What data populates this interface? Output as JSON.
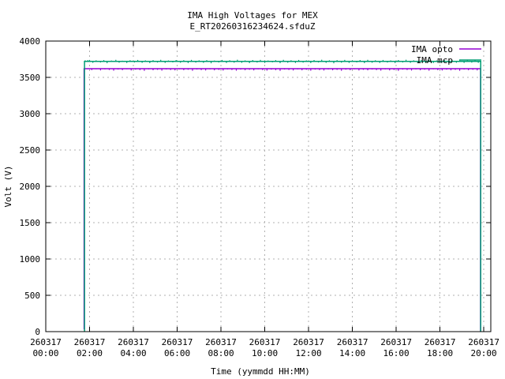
{
  "colors": {
    "opto": "#9400d3",
    "mcp": "#009e73",
    "grid": "#b0b0b0",
    "axis": "#000000",
    "background": "#ffffff"
  },
  "chart_data": {
    "type": "line",
    "title": "IMA High Voltages for MEX",
    "subtitle": "E_RT20260316234624.sfduZ",
    "xlabel": "Time (yymmdd HH:MM)",
    "ylabel": "Volt (V)",
    "ylim": [
      0,
      4000
    ],
    "xlim_hours": [
      0,
      20.32
    ],
    "grid": true,
    "legend_position": "top-right-inside",
    "yticks": [
      0,
      500,
      1000,
      1500,
      2000,
      2500,
      3000,
      3500,
      4000
    ],
    "xticks": [
      {
        "h": 0,
        "date": "260317",
        "time": "00:00"
      },
      {
        "h": 2,
        "date": "260317",
        "time": "02:00"
      },
      {
        "h": 4,
        "date": "260317",
        "time": "04:00"
      },
      {
        "h": 6,
        "date": "260317",
        "time": "06:00"
      },
      {
        "h": 8,
        "date": "260317",
        "time": "08:00"
      },
      {
        "h": 10,
        "date": "260317",
        "time": "10:00"
      },
      {
        "h": 12,
        "date": "260317",
        "time": "12:00"
      },
      {
        "h": 14,
        "date": "260317",
        "time": "14:00"
      },
      {
        "h": 16,
        "date": "260317",
        "time": "16:00"
      },
      {
        "h": 18,
        "date": "260317",
        "time": "18:00"
      },
      {
        "h": 20,
        "date": "260317",
        "time": "20:00"
      }
    ],
    "legend": [
      {
        "name": "IMA opto",
        "color": "#9400d3"
      },
      {
        "name": "IMA mcp",
        "color": "#009e73"
      }
    ],
    "series": [
      {
        "name": "IMA opto",
        "color": "#9400d3",
        "base": 3620,
        "start_h": 1.75,
        "end_h": 19.85,
        "start_value": 30,
        "end_value": 0,
        "blips": [
          [
            2.1,
            3600
          ],
          [
            2.3,
            3612
          ],
          [
            2.5,
            3596
          ],
          [
            2.7,
            3610
          ],
          [
            2.9,
            3602
          ],
          [
            3.1,
            3592
          ],
          [
            3.3,
            3608
          ],
          [
            3.5,
            3599
          ],
          [
            3.7,
            3612
          ],
          [
            3.9,
            3595
          ],
          [
            4.1,
            3606
          ],
          [
            4.3,
            3600
          ],
          [
            4.5,
            3590
          ],
          [
            4.7,
            3610
          ],
          [
            4.9,
            3598
          ],
          [
            5.1,
            3604
          ],
          [
            5.3,
            3593
          ],
          [
            5.5,
            3609
          ],
          [
            5.7,
            3601
          ],
          [
            5.9,
            3596
          ],
          [
            6.1,
            3611
          ],
          [
            6.3,
            3599
          ],
          [
            6.5,
            3605
          ],
          [
            6.7,
            3591
          ],
          [
            6.9,
            3608
          ],
          [
            7.1,
            3600
          ],
          [
            7.3,
            3595
          ],
          [
            7.5,
            3610
          ],
          [
            7.7,
            3597
          ],
          [
            7.9,
            3603
          ],
          [
            8.1,
            3594
          ],
          [
            8.3,
            3609
          ],
          [
            8.5,
            3601
          ],
          [
            8.7,
            3592
          ],
          [
            8.9,
            3607
          ],
          [
            9.1,
            3598
          ],
          [
            9.3,
            3604
          ],
          [
            9.5,
            3596
          ],
          [
            9.7,
            3611
          ],
          [
            9.9,
            3600
          ],
          [
            10.1,
            3593
          ],
          [
            10.3,
            3606
          ],
          [
            10.5,
            3599
          ],
          [
            10.7,
            3590
          ],
          [
            10.9,
            3608
          ],
          [
            11.1,
            3602
          ],
          [
            11.3,
            3595
          ],
          [
            11.5,
            3610
          ],
          [
            11.7,
            3597
          ],
          [
            11.9,
            3605
          ],
          [
            12.1,
            3592
          ],
          [
            12.3,
            3607
          ],
          [
            12.5,
            3600
          ],
          [
            12.7,
            3594
          ],
          [
            12.9,
            3609
          ],
          [
            13.1,
            3598
          ],
          [
            13.3,
            3603
          ],
          [
            13.5,
            3591
          ],
          [
            13.7,
            3606
          ],
          [
            13.9,
            3599
          ],
          [
            14.1,
            3612
          ],
          [
            14.3,
            3595
          ],
          [
            14.5,
            3604
          ],
          [
            14.7,
            3597
          ],
          [
            14.9,
            3608
          ],
          [
            15.1,
            3600
          ],
          [
            15.3,
            3593
          ],
          [
            15.5,
            3610
          ],
          [
            15.7,
            3596
          ],
          [
            15.9,
            3602
          ],
          [
            16.1,
            3590
          ],
          [
            16.3,
            3607
          ],
          [
            16.5,
            3601
          ],
          [
            16.7,
            3594
          ],
          [
            16.9,
            3609
          ],
          [
            17.1,
            3598
          ],
          [
            17.3,
            3605
          ],
          [
            17.5,
            3592
          ],
          [
            17.7,
            3611
          ],
          [
            17.9,
            3600
          ],
          [
            18.1,
            3595
          ],
          [
            18.3,
            3606
          ],
          [
            18.5,
            3597
          ],
          [
            18.7,
            3603
          ],
          [
            18.9,
            3591
          ],
          [
            19.1,
            3608
          ],
          [
            19.3,
            3599
          ],
          [
            19.5,
            3604
          ],
          [
            19.7,
            3596
          ]
        ]
      },
      {
        "name": "IMA mcp",
        "color": "#009e73",
        "base": 3720,
        "start_h": 1.77,
        "end_h": 19.86,
        "start_value": 0,
        "end_value": 0,
        "blips": [
          [
            1.8,
            3735
          ],
          [
            1.85,
            3728
          ],
          [
            1.92,
            3738
          ],
          [
            2.0,
            3740
          ],
          [
            2.15,
            3700
          ],
          [
            2.3,
            3735
          ],
          [
            2.5,
            3705
          ],
          [
            2.65,
            3738
          ],
          [
            2.8,
            3695
          ],
          [
            3.0,
            3732
          ],
          [
            3.2,
            3742
          ],
          [
            3.35,
            3702
          ],
          [
            3.5,
            3730
          ],
          [
            3.7,
            3698
          ],
          [
            3.85,
            3736
          ],
          [
            4.05,
            3705
          ],
          [
            4.2,
            3740
          ],
          [
            4.4,
            3700
          ],
          [
            4.55,
            3734
          ],
          [
            4.75,
            3696
          ],
          [
            4.9,
            3738
          ],
          [
            5.1,
            3704
          ],
          [
            5.25,
            3742
          ],
          [
            5.45,
            3699
          ],
          [
            5.6,
            3733
          ],
          [
            5.8,
            3706
          ],
          [
            5.95,
            3739
          ],
          [
            6.15,
            3701
          ],
          [
            6.3,
            3737
          ],
          [
            6.5,
            3697
          ],
          [
            6.65,
            3741
          ],
          [
            6.85,
            3703
          ],
          [
            7.0,
            3735
          ],
          [
            7.2,
            3700
          ],
          [
            7.35,
            3738
          ],
          [
            7.55,
            3694
          ],
          [
            7.7,
            3732
          ],
          [
            7.9,
            3705
          ],
          [
            8.05,
            3740
          ],
          [
            8.25,
            3698
          ],
          [
            8.4,
            3736
          ],
          [
            8.6,
            3702
          ],
          [
            8.75,
            3743
          ],
          [
            8.95,
            3700
          ],
          [
            9.1,
            3734
          ],
          [
            9.3,
            3696
          ],
          [
            9.45,
            3739
          ],
          [
            9.65,
            3704
          ],
          [
            9.8,
            3741
          ],
          [
            10.0,
            3699
          ],
          [
            10.15,
            3733
          ],
          [
            10.35,
            3707
          ],
          [
            10.5,
            3738
          ],
          [
            10.7,
            3695
          ],
          [
            10.85,
            3742
          ],
          [
            11.05,
            3701
          ],
          [
            11.2,
            3736
          ],
          [
            11.4,
            3698
          ],
          [
            11.55,
            3740
          ],
          [
            11.75,
            3703
          ],
          [
            11.9,
            3734
          ],
          [
            12.1,
            3697
          ],
          [
            12.25,
            3739
          ],
          [
            12.45,
            3705
          ],
          [
            12.6,
            3743
          ],
          [
            12.8,
            3700
          ],
          [
            12.95,
            3735
          ],
          [
            13.15,
            3694
          ],
          [
            13.3,
            3738
          ],
          [
            13.5,
            3702
          ],
          [
            13.65,
            3741
          ],
          [
            13.85,
            3699
          ],
          [
            14.0,
            3733
          ],
          [
            14.2,
            3706
          ],
          [
            14.35,
            3739
          ],
          [
            14.55,
            3696
          ],
          [
            14.7,
            3742
          ],
          [
            14.9,
            3701
          ],
          [
            15.05,
            3736
          ],
          [
            15.25,
            3698
          ],
          [
            15.4,
            3740
          ],
          [
            15.6,
            3704
          ],
          [
            15.75,
            3734
          ],
          [
            15.95,
            3697
          ],
          [
            16.1,
            3739
          ],
          [
            16.3,
            3705
          ],
          [
            16.45,
            3743
          ],
          [
            16.65,
            3700
          ],
          [
            16.8,
            3735
          ],
          [
            17.0,
            3695
          ],
          [
            17.15,
            3738
          ],
          [
            17.35,
            3702
          ],
          [
            17.5,
            3741
          ],
          [
            17.7,
            3698
          ],
          [
            17.85,
            3733
          ],
          [
            18.05,
            3706
          ],
          [
            18.2,
            3739
          ],
          [
            18.4,
            3696
          ],
          [
            18.55,
            3742
          ],
          [
            18.75,
            3701
          ],
          [
            18.9,
            3736
          ],
          [
            19.1,
            3699
          ],
          [
            19.25,
            3740
          ],
          [
            19.45,
            3703
          ],
          [
            19.6,
            3737
          ],
          [
            19.75,
            3700
          ]
        ]
      }
    ]
  }
}
